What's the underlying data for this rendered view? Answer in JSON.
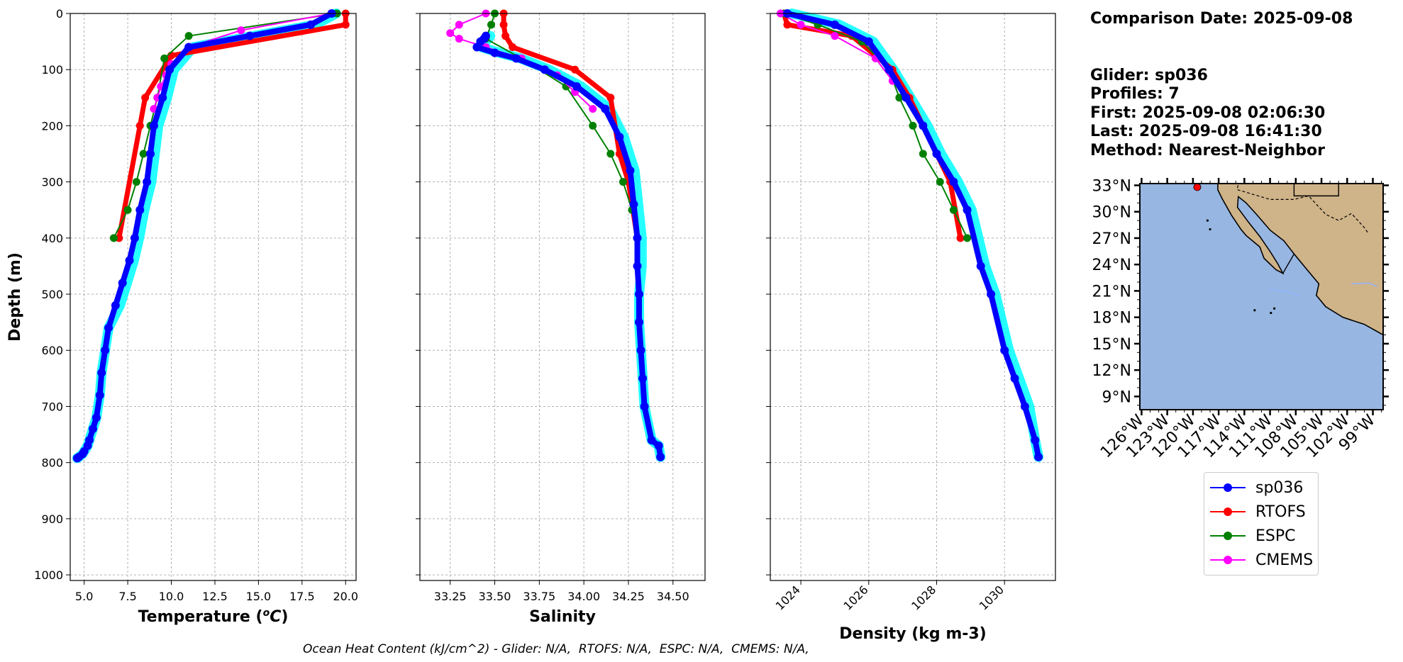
{
  "info": {
    "comparison_date": "Comparison Date: 2025-09-08",
    "glider": "Glider: sp036",
    "profiles": "Profiles: 7",
    "first": "First: 2025-09-08 02:06:30",
    "last": "Last: 2025-09-08 16:41:30",
    "method": "Method: Nearest-Neighbor"
  },
  "footer": "Ocean Heat Content (kJ/cm^2) - Glider: N/A,  RTOFS: N/A,  ESPC: N/A,  CMEMS: N/A,",
  "colors": {
    "sp036": "#0000ff",
    "sp036_band": "#00ffff",
    "RTOFS": "#ff0000",
    "ESPC": "#008000",
    "CMEMS": "#ff00ff",
    "ocean": "#97b6e1",
    "land": "#cfb389"
  },
  "legend": [
    {
      "label": "sp036",
      "color": "#0000ff"
    },
    {
      "label": "RTOFS",
      "color": "#ff0000"
    },
    {
      "label": "ESPC",
      "color": "#008000"
    },
    {
      "label": "CMEMS",
      "color": "#ff00ff"
    }
  ],
  "chart_data": [
    {
      "type": "line",
      "xlabel": "Temperature (°C)",
      "ylabel": "Depth (m)",
      "xlim": [
        4.2,
        20.6
      ],
      "ylim": [
        1010,
        0
      ],
      "xticks": [
        5.0,
        7.5,
        10.0,
        12.5,
        15.0,
        17.5,
        20.0
      ],
      "yticks": [
        0,
        100,
        200,
        300,
        400,
        500,
        600,
        700,
        800,
        900,
        1000
      ],
      "grid": true,
      "series": [
        {
          "name": "sp036",
          "x": [
            19.2,
            18.0,
            14.5,
            11.0,
            9.9,
            9.5,
            9.0,
            8.8,
            8.6,
            8.2,
            7.9,
            7.6,
            7.2,
            6.8,
            6.4,
            6.2,
            6.0,
            5.9,
            5.7,
            5.5,
            5.3,
            5.2,
            5.0,
            4.9,
            4.7,
            4.6
          ],
          "y": [
            0,
            20,
            40,
            60,
            100,
            150,
            200,
            250,
            300,
            350,
            400,
            440,
            480,
            520,
            560,
            600,
            640,
            680,
            720,
            740,
            760,
            770,
            780,
            785,
            790,
            792
          ]
        },
        {
          "name": "RTOFS",
          "x": [
            20.0,
            20.0,
            10.0,
            8.5,
            8.2,
            7.0
          ],
          "y": [
            0,
            20,
            75,
            150,
            200,
            400
          ]
        },
        {
          "name": "ESPC",
          "x": [
            19.5,
            11.0,
            9.6,
            9.2,
            8.8,
            8.4,
            8.0,
            7.5,
            6.7
          ],
          "y": [
            0,
            40,
            80,
            150,
            200,
            250,
            300,
            350,
            400
          ]
        },
        {
          "name": "CMEMS",
          "x": [
            19.2,
            14.0,
            11.0,
            10.0,
            9.7,
            9.4,
            9.2,
            9.0
          ],
          "y": [
            0,
            30,
            60,
            90,
            110,
            130,
            150,
            170
          ]
        }
      ]
    },
    {
      "type": "line",
      "xlabel": "Salinity",
      "xlim": [
        33.08,
        34.68
      ],
      "ylim": [
        1010,
        0
      ],
      "xticks": [
        33.25,
        33.5,
        33.75,
        34.0,
        34.25,
        34.5
      ],
      "grid": true,
      "series": [
        {
          "name": "sp036",
          "x": [
            33.45,
            33.44,
            33.42,
            33.4,
            33.5,
            33.62,
            33.78,
            33.96,
            34.12,
            34.2,
            34.26,
            34.28,
            34.3,
            34.3,
            34.31,
            34.31,
            34.32,
            34.33,
            34.34,
            34.38,
            34.42,
            34.43
          ],
          "y": [
            40,
            45,
            50,
            60,
            70,
            80,
            100,
            130,
            170,
            220,
            280,
            340,
            400,
            450,
            500,
            550,
            600,
            650,
            700,
            760,
            770,
            790
          ]
        },
        {
          "name": "RTOFS",
          "x": [
            33.55,
            33.55,
            33.56,
            33.6,
            33.95,
            34.15,
            34.2,
            34.25,
            34.3
          ],
          "y": [
            0,
            20,
            40,
            60,
            100,
            150,
            250,
            300,
            400
          ]
        },
        {
          "name": "ESPC",
          "x": [
            33.5,
            33.48,
            33.45,
            33.65,
            33.9,
            34.05,
            34.15,
            34.22,
            34.27,
            34.3
          ],
          "y": [
            0,
            20,
            45,
            80,
            130,
            200,
            250,
            300,
            350,
            400
          ]
        },
        {
          "name": "CMEMS",
          "x": [
            33.45,
            33.3,
            33.25,
            33.3,
            33.45,
            33.65,
            33.85,
            33.95,
            34.05
          ],
          "y": [
            0,
            20,
            35,
            45,
            60,
            80,
            110,
            140,
            170
          ]
        }
      ]
    },
    {
      "type": "line",
      "xlabel": "Density (kg m-3)",
      "xlim": [
        1023.1,
        1031.5
      ],
      "ylim": [
        1010,
        0
      ],
      "xticks": [
        1024,
        1026,
        1028,
        1030
      ],
      "grid": true,
      "series": [
        {
          "name": "sp036",
          "x": [
            1023.6,
            1025.0,
            1026.0,
            1026.6,
            1027.1,
            1027.6,
            1028.0,
            1028.5,
            1028.9,
            1029.3,
            1029.6,
            1030.0,
            1030.3,
            1030.6,
            1030.9,
            1031.0
          ],
          "y": [
            0,
            20,
            50,
            100,
            150,
            200,
            250,
            300,
            350,
            450,
            500,
            600,
            650,
            700,
            760,
            790
          ]
        },
        {
          "name": "RTOFS",
          "x": [
            1023.5,
            1023.6,
            1025.5,
            1026.7,
            1027.2,
            1027.6,
            1028.0,
            1028.4,
            1028.7
          ],
          "y": [
            0,
            20,
            40,
            100,
            150,
            200,
            250,
            300,
            400
          ]
        },
        {
          "name": "ESPC",
          "x": [
            1023.5,
            1024.5,
            1025.8,
            1026.6,
            1026.9,
            1027.3,
            1027.6,
            1028.1,
            1028.5,
            1028.9
          ],
          "y": [
            0,
            20,
            50,
            100,
            150,
            200,
            250,
            300,
            350,
            400
          ]
        },
        {
          "name": "CMEMS",
          "x": [
            1023.4,
            1024.0,
            1025.0,
            1026.2,
            1026.7
          ],
          "y": [
            0,
            20,
            40,
            80,
            120
          ]
        }
      ]
    }
  ],
  "map": {
    "lat_labels": [
      "33°N",
      "30°N",
      "27°N",
      "24°N",
      "21°N",
      "18°N",
      "15°N",
      "12°N",
      "9°N"
    ],
    "lat_values": [
      33,
      30,
      27,
      24,
      21,
      18,
      15,
      12,
      9
    ],
    "lon_labels": [
      "126°W",
      "123°W",
      "120°W",
      "117°W",
      "114°W",
      "111°W",
      "108°W",
      "105°W",
      "102°W",
      "99°W"
    ],
    "lon_values": [
      -126,
      -123,
      -120,
      -117,
      -114,
      -111,
      -108,
      -105,
      -102,
      -99
    ],
    "lon_range": [
      -126.2,
      -97.8
    ],
    "lat_range": [
      7.5,
      33.2
    ],
    "glider_position": {
      "lon": -119.5,
      "lat": 32.8
    }
  }
}
